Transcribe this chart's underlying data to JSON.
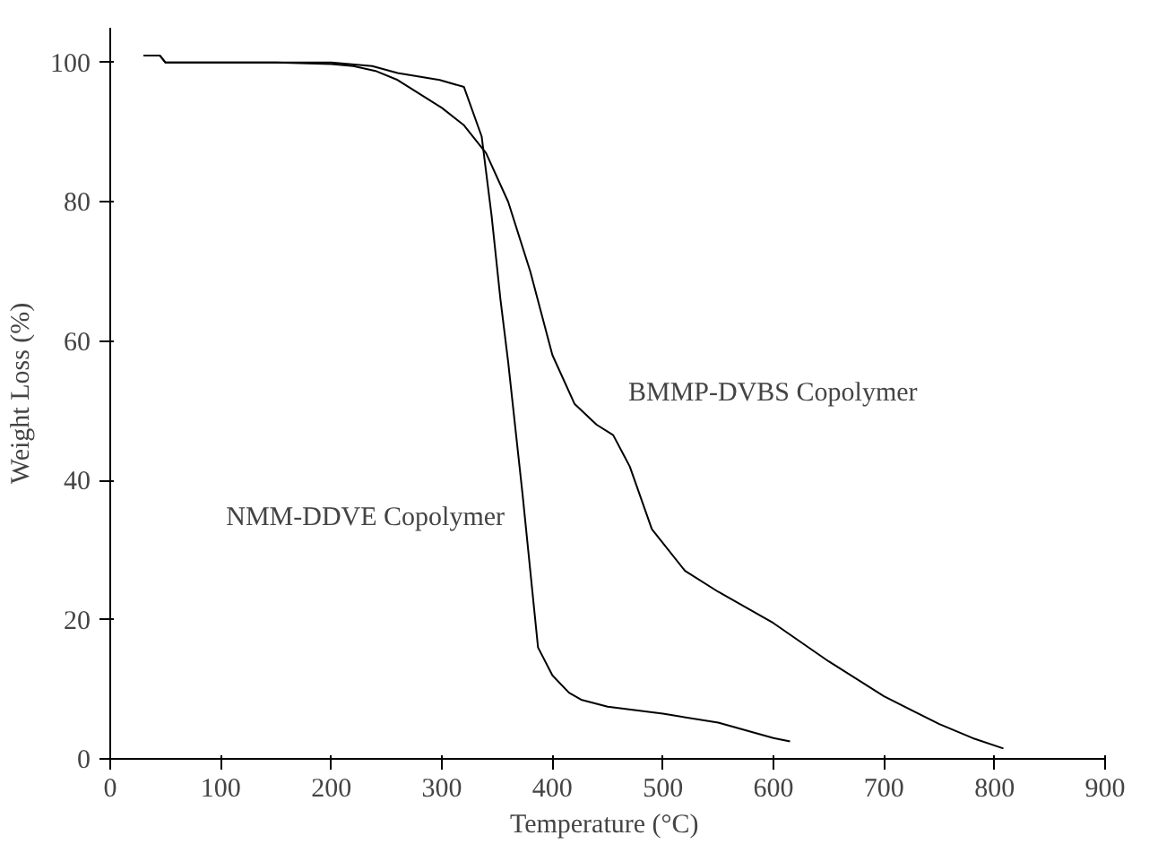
{
  "chart_data": {
    "type": "line",
    "xlabel": "Temperature  (°C)",
    "ylabel": "Weight Loss (%)",
    "xlim": [
      0,
      900
    ],
    "ylim": [
      0,
      105
    ],
    "xticks": [
      0,
      100,
      200,
      300,
      400,
      500,
      600,
      700,
      800,
      900
    ],
    "yticks": [
      0,
      20,
      40,
      60,
      80,
      100
    ],
    "grid": false,
    "marker": "none",
    "line_style": "solid",
    "series": [
      {
        "name": "NMM-DDVE Copolymer",
        "color": "#000000",
        "x": [
          30,
          45,
          50,
          100,
          150,
          200,
          237,
          260,
          298,
          320,
          336,
          345,
          353,
          360,
          373,
          387,
          400,
          415,
          426,
          450,
          500,
          550,
          600,
          615
        ],
        "values": [
          101,
          101,
          100,
          100,
          100,
          100,
          99.5,
          98.5,
          97.5,
          96.5,
          89.4,
          78,
          66,
          57,
          38,
          16,
          12,
          9.5,
          8.5,
          7.5,
          6.5,
          5.2,
          3,
          2.5
        ]
      },
      {
        "name": "BMMP-DVBS Copolymer",
        "color": "#000000",
        "x": [
          30,
          45,
          50,
          100,
          150,
          200,
          220,
          240,
          260,
          280,
          300,
          320,
          340,
          360,
          380,
          400,
          420,
          440,
          455,
          470,
          490,
          520,
          550,
          600,
          650,
          700,
          750,
          780,
          808
        ],
        "values": [
          101,
          101,
          100,
          100,
          100,
          99.8,
          99.5,
          98.8,
          97.5,
          95.5,
          93.5,
          91,
          87,
          80,
          70,
          58,
          51,
          48,
          46.5,
          42,
          33,
          27,
          24,
          19.5,
          14,
          9,
          5,
          3,
          1.5
        ]
      }
    ]
  }
}
